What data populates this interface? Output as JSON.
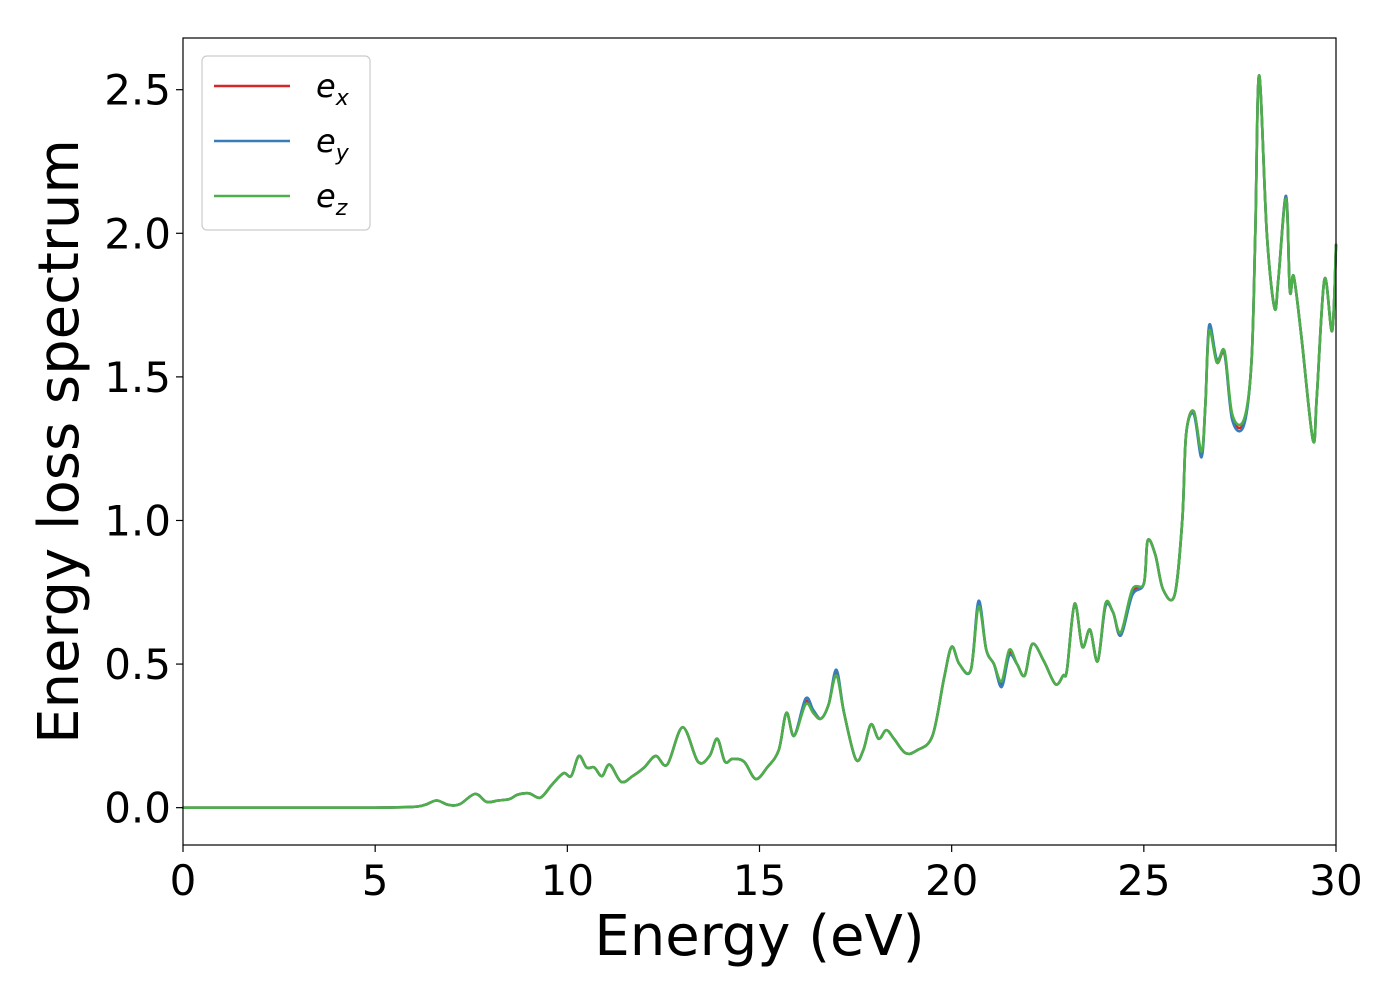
{
  "chart_data": {
    "type": "line",
    "title": "",
    "xlabel": "Energy (eV)",
    "ylabel": "Energy loss spectrum",
    "xlim": [
      0,
      30
    ],
    "ylim": [
      -0.13,
      2.68
    ],
    "xticks": [
      0,
      5,
      10,
      15,
      20,
      25,
      30
    ],
    "yticks": [
      0.0,
      0.5,
      1.0,
      1.5,
      2.0,
      2.5
    ],
    "xtick_labels": [
      "0",
      "5",
      "10",
      "15",
      "20",
      "25",
      "30"
    ],
    "ytick_labels": [
      "0.0",
      "0.5",
      "1.0",
      "1.5",
      "2.0",
      "2.5"
    ],
    "grid": false,
    "legend_position": "top-left",
    "series": [
      {
        "name": "e_x",
        "legend_base": "e",
        "legend_sub": "x",
        "color": "#d62728",
        "x": [
          0,
          2,
          4,
          5,
          6,
          6.3,
          6.6,
          6.9,
          7.2,
          7.6,
          7.9,
          8.2,
          8.5,
          8.7,
          9.0,
          9.3,
          9.6,
          9.9,
          10.1,
          10.3,
          10.5,
          10.7,
          10.9,
          11.1,
          11.4,
          11.7,
          12.0,
          12.3,
          12.6,
          13.0,
          13.4,
          13.7,
          13.9,
          14.1,
          14.3,
          14.6,
          14.9,
          15.2,
          15.5,
          15.7,
          15.9,
          16.2,
          16.4,
          16.6,
          16.8,
          17.0,
          17.2,
          17.5,
          17.7,
          17.9,
          18.1,
          18.3,
          18.5,
          18.8,
          19.1,
          19.5,
          19.8,
          20.0,
          20.2,
          20.5,
          20.7,
          20.9,
          21.1,
          21.3,
          21.5,
          21.7,
          21.9,
          22.1,
          22.4,
          22.7,
          22.9,
          23.0,
          23.2,
          23.4,
          23.6,
          23.8,
          24.0,
          24.2,
          24.4,
          24.7,
          25.0,
          25.1,
          25.3,
          25.5,
          25.8,
          26.0,
          26.1,
          26.3,
          26.5,
          26.6,
          26.7,
          26.9,
          27.1,
          27.3,
          27.6,
          27.8,
          27.9,
          28.0,
          28.2,
          28.4,
          28.5,
          28.7,
          28.8,
          28.9,
          29.1,
          29.4,
          29.5,
          29.7,
          29.9,
          30.0
        ],
        "y": [
          0,
          0,
          0,
          0,
          0.003,
          0.01,
          0.025,
          0.01,
          0.012,
          0.048,
          0.02,
          0.025,
          0.03,
          0.045,
          0.05,
          0.035,
          0.08,
          0.12,
          0.11,
          0.18,
          0.14,
          0.14,
          0.11,
          0.15,
          0.09,
          0.11,
          0.14,
          0.18,
          0.15,
          0.28,
          0.16,
          0.18,
          0.24,
          0.16,
          0.17,
          0.16,
          0.1,
          0.14,
          0.2,
          0.33,
          0.25,
          0.37,
          0.33,
          0.31,
          0.36,
          0.47,
          0.33,
          0.17,
          0.2,
          0.29,
          0.24,
          0.27,
          0.24,
          0.19,
          0.2,
          0.25,
          0.45,
          0.56,
          0.5,
          0.48,
          0.71,
          0.55,
          0.5,
          0.43,
          0.54,
          0.5,
          0.46,
          0.57,
          0.51,
          0.43,
          0.46,
          0.48,
          0.71,
          0.56,
          0.62,
          0.51,
          0.7,
          0.68,
          0.6,
          0.75,
          0.78,
          0.93,
          0.88,
          0.76,
          0.74,
          1.0,
          1.3,
          1.38,
          1.23,
          1.4,
          1.67,
          1.55,
          1.58,
          1.36,
          1.34,
          1.55,
          2.0,
          2.55,
          2.0,
          1.74,
          1.84,
          2.13,
          1.8,
          1.85,
          1.64,
          1.28,
          1.43,
          1.84,
          1.66,
          1.96
        ]
      },
      {
        "name": "e_y",
        "legend_base": "e",
        "legend_sub": "y",
        "color": "#377eb8",
        "x": [
          0,
          2,
          4,
          5,
          6,
          6.3,
          6.6,
          6.9,
          7.2,
          7.6,
          7.9,
          8.2,
          8.5,
          8.7,
          9.0,
          9.3,
          9.6,
          9.9,
          10.1,
          10.3,
          10.5,
          10.7,
          10.9,
          11.1,
          11.4,
          11.7,
          12.0,
          12.3,
          12.6,
          13.0,
          13.4,
          13.7,
          13.9,
          14.1,
          14.3,
          14.6,
          14.9,
          15.2,
          15.5,
          15.7,
          15.9,
          16.2,
          16.4,
          16.6,
          16.8,
          17.0,
          17.2,
          17.5,
          17.7,
          17.9,
          18.1,
          18.3,
          18.5,
          18.8,
          19.1,
          19.5,
          19.8,
          20.0,
          20.2,
          20.5,
          20.7,
          20.9,
          21.1,
          21.3,
          21.5,
          21.7,
          21.9,
          22.1,
          22.4,
          22.7,
          22.9,
          23.0,
          23.2,
          23.4,
          23.6,
          23.8,
          24.0,
          24.2,
          24.4,
          24.7,
          25.0,
          25.1,
          25.3,
          25.5,
          25.8,
          26.0,
          26.1,
          26.3,
          26.5,
          26.6,
          26.7,
          26.9,
          27.1,
          27.3,
          27.6,
          27.8,
          27.9,
          28.0,
          28.2,
          28.4,
          28.5,
          28.7,
          28.8,
          28.9,
          29.1,
          29.4,
          29.5,
          29.7,
          29.9,
          30.0
        ],
        "y": [
          0,
          0,
          0,
          0,
          0.003,
          0.01,
          0.025,
          0.01,
          0.012,
          0.048,
          0.02,
          0.025,
          0.03,
          0.045,
          0.05,
          0.035,
          0.08,
          0.12,
          0.11,
          0.18,
          0.14,
          0.14,
          0.11,
          0.15,
          0.09,
          0.11,
          0.14,
          0.18,
          0.15,
          0.28,
          0.16,
          0.18,
          0.24,
          0.16,
          0.17,
          0.16,
          0.1,
          0.14,
          0.2,
          0.33,
          0.25,
          0.38,
          0.34,
          0.31,
          0.36,
          0.48,
          0.33,
          0.17,
          0.2,
          0.29,
          0.24,
          0.27,
          0.24,
          0.19,
          0.2,
          0.25,
          0.45,
          0.56,
          0.5,
          0.48,
          0.72,
          0.55,
          0.5,
          0.42,
          0.53,
          0.5,
          0.46,
          0.57,
          0.51,
          0.43,
          0.46,
          0.48,
          0.71,
          0.56,
          0.62,
          0.51,
          0.7,
          0.68,
          0.6,
          0.74,
          0.78,
          0.93,
          0.88,
          0.76,
          0.74,
          1.0,
          1.3,
          1.37,
          1.22,
          1.4,
          1.68,
          1.56,
          1.58,
          1.35,
          1.33,
          1.55,
          2.0,
          2.55,
          2.0,
          1.74,
          1.84,
          2.13,
          1.8,
          1.85,
          1.64,
          1.28,
          1.43,
          1.84,
          1.66,
          1.96
        ]
      },
      {
        "name": "e_z",
        "legend_base": "e",
        "legend_sub": "z",
        "color": "#4daf4a",
        "x": [
          0,
          2,
          4,
          5,
          6,
          6.3,
          6.6,
          6.9,
          7.2,
          7.6,
          7.9,
          8.2,
          8.5,
          8.7,
          9.0,
          9.3,
          9.6,
          9.9,
          10.1,
          10.3,
          10.5,
          10.7,
          10.9,
          11.1,
          11.4,
          11.7,
          12.0,
          12.3,
          12.6,
          13.0,
          13.4,
          13.7,
          13.9,
          14.1,
          14.3,
          14.6,
          14.9,
          15.2,
          15.5,
          15.7,
          15.9,
          16.2,
          16.4,
          16.6,
          16.8,
          17.0,
          17.2,
          17.5,
          17.7,
          17.9,
          18.1,
          18.3,
          18.5,
          18.8,
          19.1,
          19.5,
          19.8,
          20.0,
          20.2,
          20.5,
          20.7,
          20.9,
          21.1,
          21.3,
          21.5,
          21.7,
          21.9,
          22.1,
          22.4,
          22.7,
          22.9,
          23.0,
          23.2,
          23.4,
          23.6,
          23.8,
          24.0,
          24.2,
          24.4,
          24.7,
          25.0,
          25.1,
          25.3,
          25.5,
          25.8,
          26.0,
          26.1,
          26.3,
          26.5,
          26.6,
          26.7,
          26.9,
          27.1,
          27.3,
          27.6,
          27.8,
          27.9,
          28.0,
          28.2,
          28.4,
          28.5,
          28.7,
          28.8,
          28.9,
          29.1,
          29.4,
          29.5,
          29.7,
          29.9,
          30.0
        ],
        "y": [
          0,
          0,
          0,
          0,
          0.003,
          0.01,
          0.025,
          0.01,
          0.012,
          0.048,
          0.02,
          0.025,
          0.03,
          0.045,
          0.05,
          0.035,
          0.08,
          0.12,
          0.11,
          0.18,
          0.14,
          0.14,
          0.11,
          0.15,
          0.09,
          0.11,
          0.14,
          0.18,
          0.15,
          0.28,
          0.16,
          0.18,
          0.24,
          0.16,
          0.17,
          0.16,
          0.1,
          0.14,
          0.2,
          0.33,
          0.25,
          0.36,
          0.33,
          0.31,
          0.36,
          0.46,
          0.33,
          0.17,
          0.2,
          0.29,
          0.24,
          0.27,
          0.24,
          0.19,
          0.2,
          0.25,
          0.45,
          0.56,
          0.5,
          0.48,
          0.7,
          0.55,
          0.5,
          0.44,
          0.55,
          0.5,
          0.46,
          0.57,
          0.51,
          0.43,
          0.46,
          0.48,
          0.71,
          0.56,
          0.62,
          0.51,
          0.71,
          0.68,
          0.61,
          0.76,
          0.78,
          0.93,
          0.88,
          0.76,
          0.74,
          1.0,
          1.3,
          1.38,
          1.24,
          1.4,
          1.66,
          1.55,
          1.59,
          1.37,
          1.35,
          1.55,
          2.0,
          2.55,
          2.0,
          1.74,
          1.84,
          2.12,
          1.8,
          1.85,
          1.64,
          1.28,
          1.43,
          1.84,
          1.66,
          1.96
        ]
      }
    ]
  }
}
